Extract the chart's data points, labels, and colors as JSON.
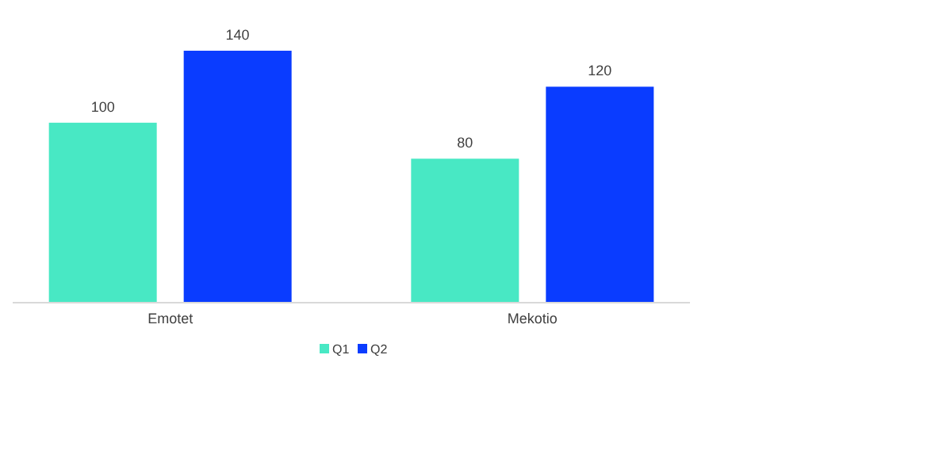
{
  "chart_data": {
    "type": "bar",
    "categories": [
      "Emotet",
      "Mekotio"
    ],
    "series": [
      {
        "name": "Q1",
        "color": "#48e8c4",
        "values": [
          100,
          80
        ]
      },
      {
        "name": "Q2",
        "color": "#0a3cff",
        "values": [
          140,
          120
        ]
      }
    ],
    "data_labels": true,
    "legend": "bottom"
  }
}
